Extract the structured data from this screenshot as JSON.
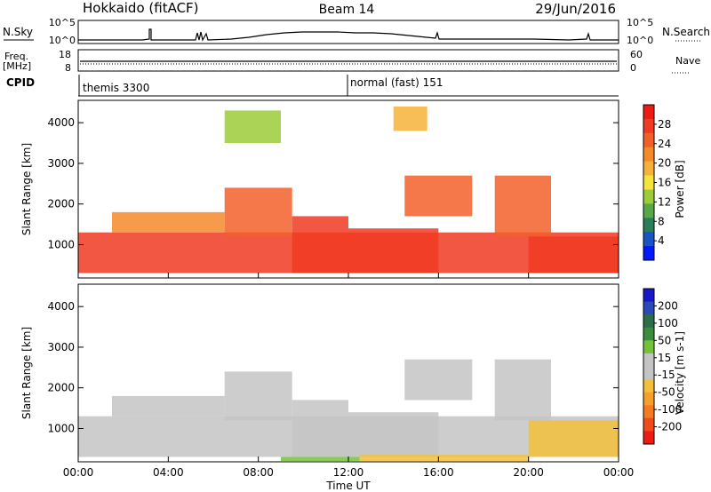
{
  "header": {
    "station": "Hokkaido (fitACF)",
    "beam": "Beam 14",
    "date": "29/Jun/2016"
  },
  "noise_panel": {
    "left_label": "N.Sky",
    "left_ticks": [
      "10^5",
      "10^0"
    ],
    "right_ticks": [
      "10^5",
      "10^0"
    ],
    "right_label": "N.Search"
  },
  "freq_panel": {
    "left_label_top": "Freq.",
    "left_label_bottom": "[MHz]",
    "left_ticks": [
      "18",
      "8"
    ],
    "right_ticks": [
      "60",
      "0"
    ],
    "right_label": "Nave"
  },
  "cpid_panel": {
    "label": "CPID",
    "programs": [
      {
        "name": "themis 3300",
        "start_hour": 0
      },
      {
        "name": "normal (fast) 151",
        "start_hour": 12
      }
    ]
  },
  "chart_data": [
    {
      "type": "heatmap",
      "parameter": "Power",
      "ylabel": "Slant Range [km]",
      "yticks": [
        1000,
        2000,
        3000,
        4000
      ],
      "ylim": [
        180,
        4550
      ],
      "xlim": [
        0,
        24
      ],
      "colorbar_label": "Power [dB]",
      "colorbar_ticks": [
        "4",
        "8",
        "12",
        "16",
        "20",
        "24",
        "28"
      ],
      "colorbar_colors": [
        "#0018ff",
        "#1a53c8",
        "#2a7d5a",
        "#58a84a",
        "#9ccc3a",
        "#f5e23a",
        "#f6b13a",
        "#f58a2a",
        "#f2602a",
        "#f03a22",
        "#ee1a14"
      ],
      "echo_regions": [
        {
          "t": [
            0.0,
            24.0
          ],
          "r": [
            300,
            1300
          ],
          "level": 26
        },
        {
          "t": [
            1.5,
            6.5
          ],
          "r": [
            1300,
            1800
          ],
          "level": 22
        },
        {
          "t": [
            6.5,
            9.5
          ],
          "r": [
            1200,
            2400
          ],
          "level": 24
        },
        {
          "t": [
            9.5,
            12.0
          ],
          "r": [
            300,
            1700
          ],
          "level": 27
        },
        {
          "t": [
            12.0,
            16.0
          ],
          "r": [
            300,
            1400
          ],
          "level": 26
        },
        {
          "t": [
            14.5,
            17.5
          ],
          "r": [
            1700,
            2700
          ],
          "level": 24
        },
        {
          "t": [
            18.5,
            21.0
          ],
          "r": [
            1200,
            2700
          ],
          "level": 25
        },
        {
          "t": [
            20.0,
            24.0
          ],
          "r": [
            300,
            1200
          ],
          "level": 27
        },
        {
          "t": [
            6.5,
            9.0
          ],
          "r": [
            3500,
            4300
          ],
          "level": 14
        },
        {
          "t": [
            14.0,
            15.5
          ],
          "r": [
            3800,
            4400
          ],
          "level": 18
        }
      ]
    },
    {
      "type": "heatmap",
      "parameter": "Velocity",
      "ylabel": "Slant Range [km]",
      "yticks": [
        1000,
        2000,
        3000,
        4000
      ],
      "ylim": [
        180,
        4550
      ],
      "xlabel": "Time UT",
      "xticks": [
        "00:00",
        "04:00",
        "08:00",
        "12:00",
        "16:00",
        "20:00",
        "00:00"
      ],
      "xlim": [
        0,
        24
      ],
      "colorbar_label": "Velocity [m s-1]",
      "colorbar_ticks": [
        "200",
        "100",
        "50",
        "15",
        "-15",
        "-50",
        "-100",
        "-200"
      ],
      "colorbar_colors": [
        "#1818c8",
        "#2a4ab8",
        "#2a6e4a",
        "#3c8c3c",
        "#74c23a",
        "#c4c4c4",
        "#c4c4c4",
        "#f2c03a",
        "#f5a02a",
        "#f57a22",
        "#f24a1a",
        "#ee1a14"
      ],
      "echo_regions": [
        {
          "t": [
            0.0,
            24.0
          ],
          "r": [
            300,
            1300
          ],
          "level": 0
        },
        {
          "t": [
            1.5,
            6.5
          ],
          "r": [
            1300,
            1800
          ],
          "level": 0
        },
        {
          "t": [
            6.5,
            9.5
          ],
          "r": [
            1200,
            2400
          ],
          "level": 0
        },
        {
          "t": [
            9.5,
            12.0
          ],
          "r": [
            300,
            1700
          ],
          "level": -20
        },
        {
          "t": [
            12.0,
            16.0
          ],
          "r": [
            300,
            1400
          ],
          "level": 0
        },
        {
          "t": [
            14.5,
            17.5
          ],
          "r": [
            1700,
            2700
          ],
          "level": 0
        },
        {
          "t": [
            18.5,
            21.0
          ],
          "r": [
            1200,
            2700
          ],
          "level": 0
        },
        {
          "t": [
            20.0,
            24.0
          ],
          "r": [
            300,
            1200
          ],
          "level": -40
        },
        {
          "t": [
            12.5,
            20.0
          ],
          "r": [
            200,
            350
          ],
          "level": -60
        },
        {
          "t": [
            9.0,
            12.5
          ],
          "r": [
            200,
            300
          ],
          "level": 60
        }
      ]
    }
  ]
}
